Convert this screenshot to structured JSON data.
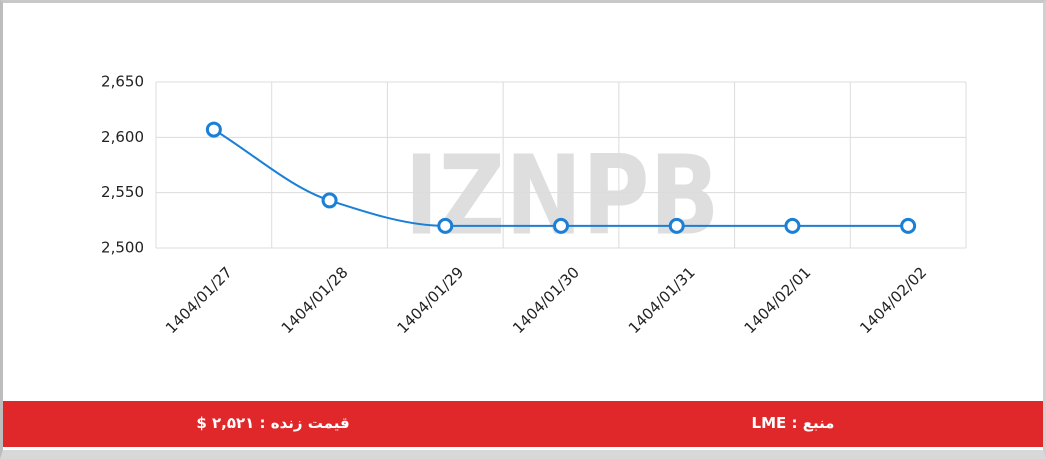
{
  "chart_data": {
    "type": "line",
    "watermark": "IZNPB",
    "categories": [
      "1404/01/27",
      "1404/01/28",
      "1404/01/29",
      "1404/01/30",
      "1404/01/31",
      "1404/02/01",
      "1404/02/02"
    ],
    "values": [
      2607,
      2543,
      2520,
      2520,
      2520,
      2520,
      2520
    ],
    "color": "#1a7fd6",
    "ylim": [
      2500,
      2650
    ],
    "yticks": [
      {
        "value": 2500,
        "label": "2,500"
      },
      {
        "value": 2550,
        "label": "2,550"
      },
      {
        "value": 2600,
        "label": "2,600"
      },
      {
        "value": 2650,
        "label": "2,650"
      }
    ],
    "grid": true
  },
  "footer": {
    "live_price": "قیمت زنده : ۲,۵۲۱ $",
    "source": "منبع : LME"
  }
}
